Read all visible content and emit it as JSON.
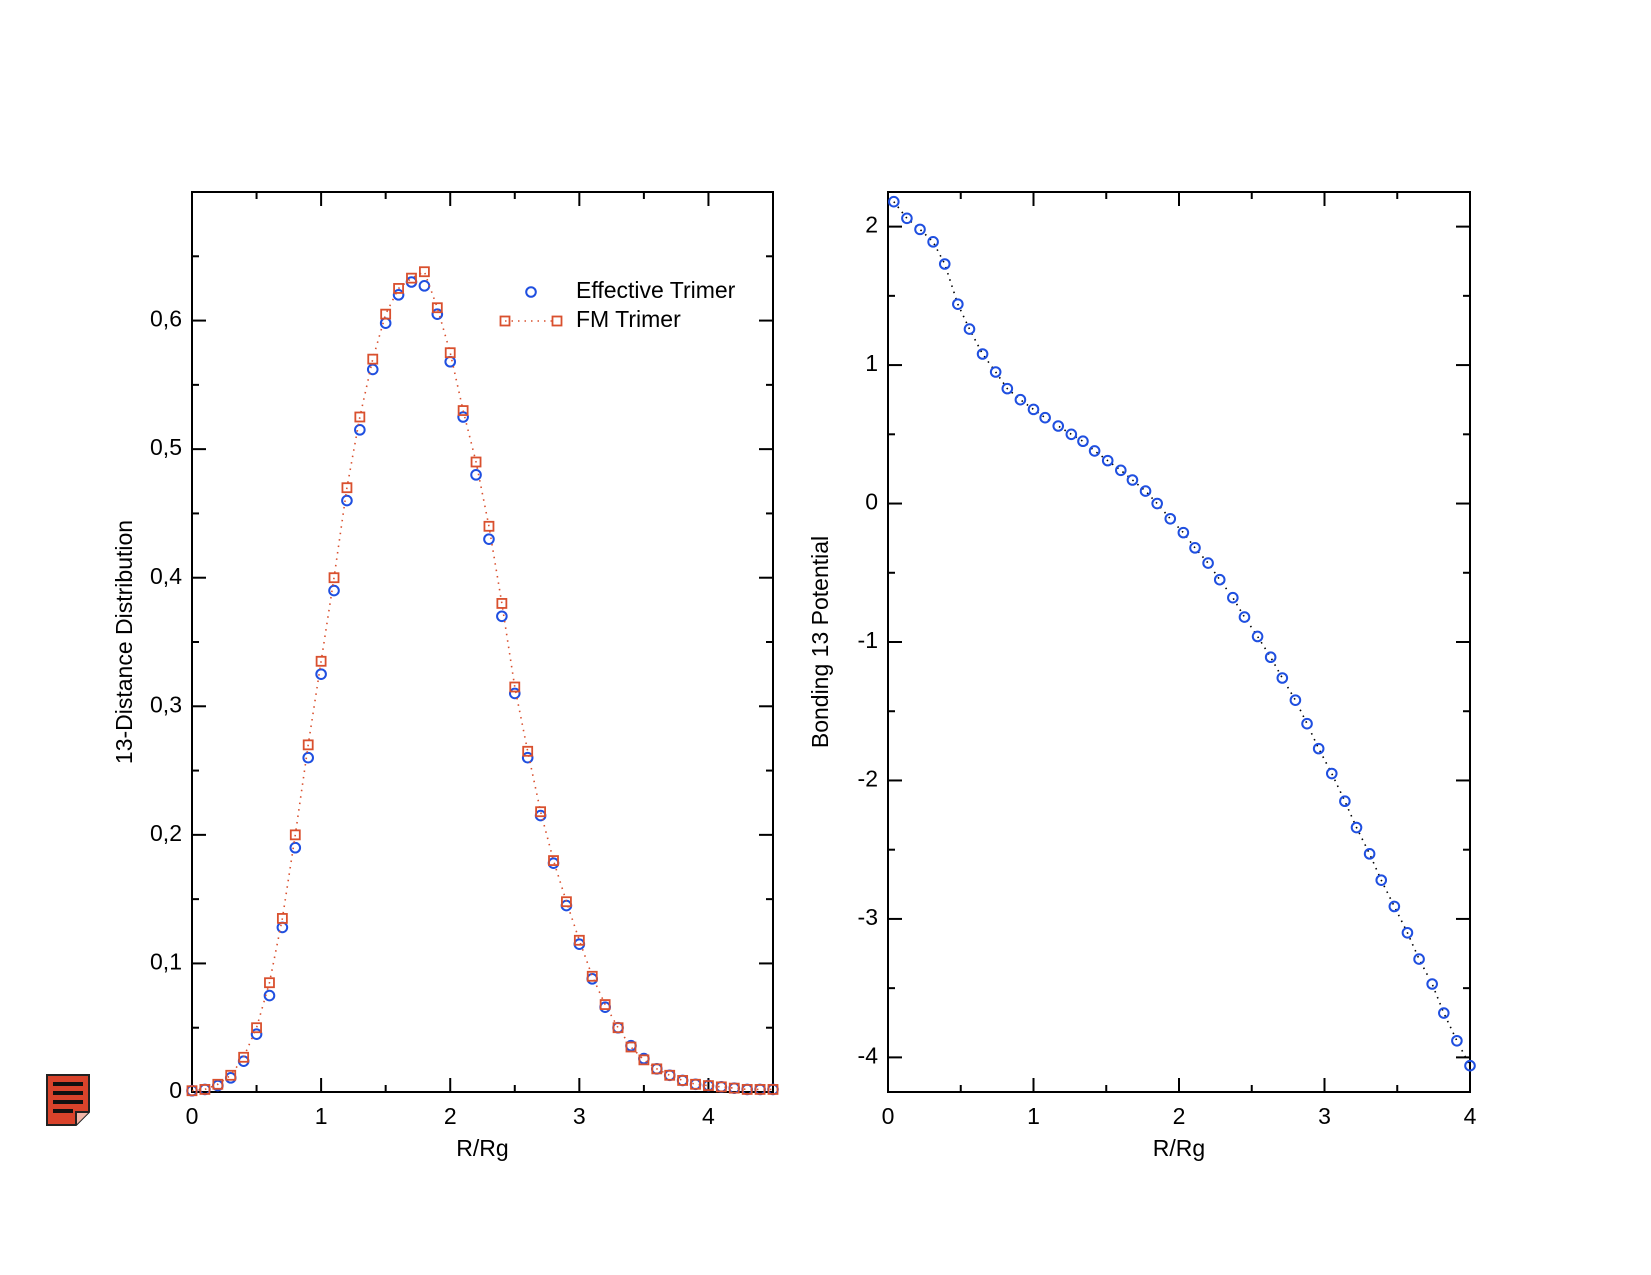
{
  "chart_data": [
    {
      "type": "scatter",
      "xlabel": "R/Rg",
      "ylabel": "13-Distance Distribution",
      "xlim": [
        0,
        4.5
      ],
      "xticks": [
        0,
        1,
        2,
        3,
        4
      ],
      "ylim": [
        0,
        0.7
      ],
      "yticks": [
        0,
        {
          "value": 0.1,
          "label": "0,1"
        },
        {
          "value": 0.2,
          "label": "0,2"
        },
        {
          "value": 0.3,
          "label": "0,3"
        },
        {
          "value": 0.4,
          "label": "0,4"
        },
        {
          "value": 0.5,
          "label": "0,5"
        },
        {
          "value": 0.6,
          "label": "0,6"
        }
      ],
      "legend": "upper right",
      "series": [
        {
          "name": "Effective Trimer",
          "color": "#1f4fe0",
          "marker": "circle",
          "x": [
            0,
            0.1,
            0.2,
            0.3,
            0.4,
            0.5,
            0.6,
            0.7,
            0.8,
            0.9,
            1,
            1.1,
            1.2,
            1.3,
            1.4,
            1.5,
            1.6,
            1.7,
            1.8,
            1.9,
            2,
            2.1,
            2.2,
            2.3,
            2.4,
            2.5,
            2.6,
            2.7,
            2.8,
            2.9,
            3,
            3.1,
            3.2,
            3.3,
            3.4,
            3.5,
            3.6,
            3.7,
            3.8,
            3.9,
            4,
            4.1,
            4.2,
            4.3,
            4.4,
            4.5
          ],
          "values": [
            0.001,
            0.002,
            0.005,
            0.011,
            0.024,
            0.045,
            0.075,
            0.128,
            0.19,
            0.26,
            0.325,
            0.39,
            0.46,
            0.515,
            0.562,
            0.598,
            0.62,
            0.63,
            0.627,
            0.605,
            0.568,
            0.525,
            0.48,
            0.43,
            0.37,
            0.31,
            0.26,
            0.215,
            0.178,
            0.145,
            0.115,
            0.088,
            0.066,
            0.05,
            0.036,
            0.026,
            0.018,
            0.013,
            0.009,
            0.006,
            0.005,
            0.004,
            0.003,
            0.002,
            0.002,
            0.002
          ]
        },
        {
          "name": "FM Trimer",
          "color": "#d9502e",
          "marker": "square",
          "line_color": "#d9502e",
          "x": [
            0,
            0.1,
            0.2,
            0.3,
            0.4,
            0.5,
            0.6,
            0.7,
            0.8,
            0.9,
            1,
            1.1,
            1.2,
            1.3,
            1.4,
            1.5,
            1.6,
            1.7,
            1.8,
            1.9,
            2,
            2.1,
            2.2,
            2.3,
            2.4,
            2.5,
            2.6,
            2.7,
            2.8,
            2.9,
            3,
            3.1,
            3.2,
            3.3,
            3.4,
            3.5,
            3.6,
            3.7,
            3.8,
            3.9,
            4,
            4.1,
            4.2,
            4.3,
            4.4,
            4.5
          ],
          "values": [
            0.001,
            0.002,
            0.006,
            0.013,
            0.027,
            0.05,
            0.085,
            0.135,
            0.2,
            0.27,
            0.335,
            0.4,
            0.47,
            0.525,
            0.57,
            0.605,
            0.625,
            0.633,
            0.638,
            0.61,
            0.575,
            0.53,
            0.49,
            0.44,
            0.38,
            0.315,
            0.265,
            0.218,
            0.18,
            0.148,
            0.118,
            0.09,
            0.068,
            0.05,
            0.035,
            0.025,
            0.018,
            0.013,
            0.009,
            0.006,
            0.005,
            0.004,
            0.003,
            0.002,
            0.002,
            0.002
          ]
        }
      ]
    },
    {
      "type": "scatter",
      "xlabel": "R/Rg",
      "ylabel": "Bonding 13 Potential",
      "xlim": [
        0,
        4
      ],
      "xticks": [
        0,
        1,
        2,
        3,
        4
      ],
      "ylim": [
        -4.25,
        2.25
      ],
      "yticks": [
        -4,
        -3,
        -2,
        -1,
        0,
        1,
        2
      ],
      "series": [
        {
          "color": "#1f4fe0",
          "marker": "circle",
          "line_color": "#000000",
          "x": [
            0.04,
            0.13,
            0.22,
            0.31,
            0.39,
            0.48,
            0.56,
            0.65,
            0.74,
            0.82,
            0.91,
            1,
            1.08,
            1.17,
            1.26,
            1.34,
            1.42,
            1.51,
            1.6,
            1.68,
            1.77,
            1.85,
            1.94,
            2.03,
            2.11,
            2.2,
            2.28,
            2.37,
            2.45,
            2.54,
            2.63,
            2.71,
            2.8,
            2.88,
            2.96,
            3.05,
            3.14,
            3.22,
            3.31,
            3.39,
            3.48,
            3.57,
            3.65,
            3.74,
            3.82,
            3.91,
            4
          ],
          "values": [
            2.18,
            2.06,
            1.98,
            1.89,
            1.73,
            1.44,
            1.26,
            1.08,
            0.95,
            0.83,
            0.75,
            0.68,
            0.62,
            0.56,
            0.5,
            0.45,
            0.38,
            0.31,
            0.24,
            0.17,
            0.09,
            0,
            -0.11,
            -0.21,
            -0.32,
            -0.43,
            -0.55,
            -0.68,
            -0.82,
            -0.96,
            -1.11,
            -1.26,
            -1.42,
            -1.59,
            -1.77,
            -1.95,
            -2.15,
            -2.34,
            -2.53,
            -2.72,
            -2.91,
            -3.1,
            -3.29,
            -3.47,
            -3.68,
            -3.88,
            -4.06
          ]
        }
      ]
    }
  ]
}
